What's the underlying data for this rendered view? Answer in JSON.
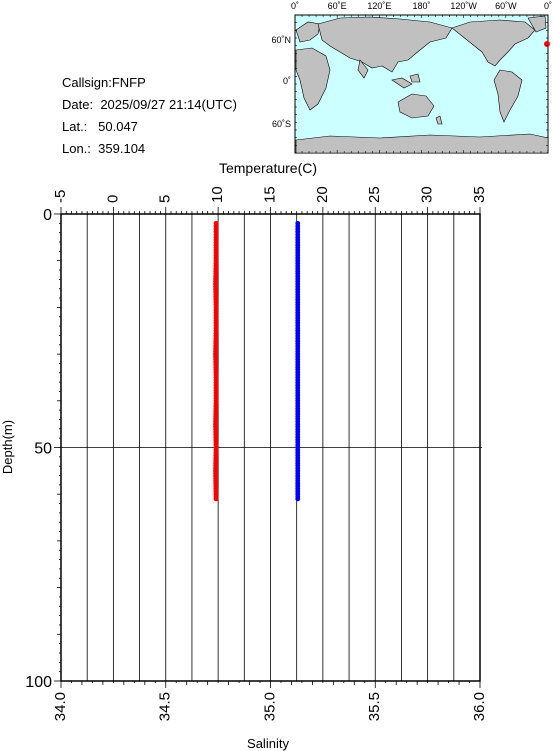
{
  "info": {
    "callsign": "Callsign:FNFP",
    "date_label": "Date:",
    "date_value": "2025/09/27 21:14(UTC)",
    "lat_label": "Lat.:",
    "lat_value": "50.047",
    "lon_label": "Lon.:",
    "lon_value": "359.104"
  },
  "map": {
    "top_ticks": [
      "0˚",
      "60˚E",
      "120˚E",
      "180˚",
      "120˚W",
      "60˚W",
      "0˚"
    ],
    "left_ticks": [
      "60˚N",
      "0˚",
      "60˚S"
    ],
    "station_marker_color": "#ff0000",
    "ocean_color": "#ccffff",
    "land_color": "#c0c0c0"
  },
  "chart_data": {
    "type": "scatter",
    "xlabel_top": "Temperature(C)",
    "xlabel_bottom": "Salinity",
    "ylabel": "Depth(m)",
    "temperature_ticks": [
      "-5",
      "0",
      "5",
      "10",
      "15",
      "20",
      "25",
      "30",
      "35"
    ],
    "temperature_lim": [
      -5,
      35
    ],
    "salinity_ticks": [
      "34.0",
      "34.5",
      "35.0",
      "35.5",
      "36.0"
    ],
    "salinity_lim": [
      34.0,
      36.0
    ],
    "depth_ticks": [
      "0",
      "50",
      "100"
    ],
    "depth_lim": [
      0,
      100
    ],
    "grid": true,
    "series": [
      {
        "variable": "temperature",
        "color": "#ff0000",
        "depth": [
          2,
          5,
          10,
          15,
          20,
          25,
          30,
          35,
          40,
          45,
          50,
          55,
          61
        ],
        "values": [
          9.8,
          9.8,
          9.8,
          9.75,
          9.8,
          9.8,
          9.75,
          9.8,
          9.8,
          9.75,
          9.8,
          9.75,
          9.8
        ]
      },
      {
        "variable": "salinity",
        "color": "#0000ff",
        "depth": [
          2,
          5,
          10,
          15,
          20,
          25,
          30,
          35,
          40,
          45,
          50,
          55,
          61
        ],
        "values": [
          35.13,
          35.13,
          35.13,
          35.13,
          35.13,
          35.13,
          35.13,
          35.13,
          35.13,
          35.13,
          35.13,
          35.13,
          35.13
        ]
      }
    ]
  }
}
